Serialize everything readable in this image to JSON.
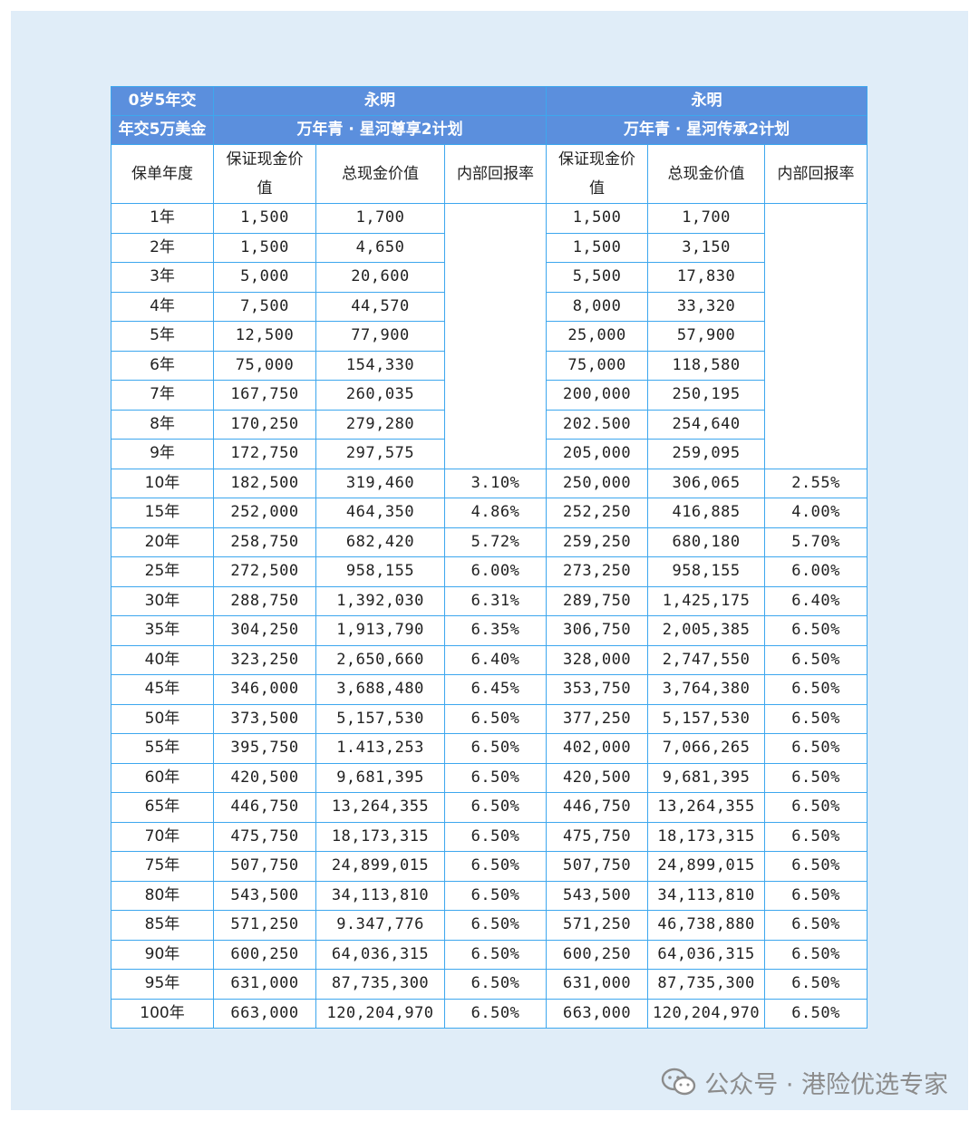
{
  "header": {
    "age_term": "0岁5年交",
    "premium": "年交5万美金",
    "company_a": "永明",
    "plan_a": "万年青 · 星河尊享2计划",
    "company_b": "永明",
    "plan_b": "万年青 · 星河传承2计划"
  },
  "columns": {
    "year": "保单年度",
    "guaranteed_line1": "保证现金价",
    "guaranteed_line2": "值",
    "total": "总现金价值",
    "irr": "内部回报率"
  },
  "rows": [
    [
      "1年",
      "1,500",
      "1,700",
      "",
      "1,500",
      "1,700",
      ""
    ],
    [
      "2年",
      "1,500",
      "4,650",
      "",
      "1,500",
      "3,150",
      ""
    ],
    [
      "3年",
      "5,000",
      "20,600",
      "",
      "5,500",
      "17,830",
      ""
    ],
    [
      "4年",
      "7,500",
      "44,570",
      "",
      "8,000",
      "33,320",
      ""
    ],
    [
      "5年",
      "12,500",
      "77,900",
      "",
      "25,000",
      "57,900",
      ""
    ],
    [
      "6年",
      "75,000",
      "154,330",
      "",
      "75,000",
      "118,580",
      ""
    ],
    [
      "7年",
      "167,750",
      "260,035",
      "",
      "200,000",
      "250,195",
      ""
    ],
    [
      "8年",
      "170,250",
      "279,280",
      "",
      "202.500",
      "254,640",
      ""
    ],
    [
      "9年",
      "172,750",
      "297,575",
      "",
      "205,000",
      "259,095",
      ""
    ],
    [
      "10年",
      "182,500",
      "319,460",
      "3.10%",
      "250,000",
      "306,065",
      "2.55%"
    ],
    [
      "15年",
      "252,000",
      "464,350",
      "4.86%",
      "252,250",
      "416,885",
      "4.00%"
    ],
    [
      "20年",
      "258,750",
      "682,420",
      "5.72%",
      "259,250",
      "680,180",
      "5.70%"
    ],
    [
      "25年",
      "272,500",
      "958,155",
      "6.00%",
      "273,250",
      "958,155",
      "6.00%"
    ],
    [
      "30年",
      "288,750",
      "1,392,030",
      "6.31%",
      "289,750",
      "1,425,175",
      "6.40%"
    ],
    [
      "35年",
      "304,250",
      "1,913,790",
      "6.35%",
      "306,750",
      "2,005,385",
      "6.50%"
    ],
    [
      "40年",
      "323,250",
      "2,650,660",
      "6.40%",
      "328,000",
      "2,747,550",
      "6.50%"
    ],
    [
      "45年",
      "346,000",
      "3,688,480",
      "6.45%",
      "353,750",
      "3,764,380",
      "6.50%"
    ],
    [
      "50年",
      "373,500",
      "5,157,530",
      "6.50%",
      "377,250",
      "5,157,530",
      "6.50%"
    ],
    [
      "55年",
      "395,750",
      "1.413,253",
      "6.50%",
      "402,000",
      "7,066,265",
      "6.50%"
    ],
    [
      "60年",
      "420,500",
      "9,681,395",
      "6.50%",
      "420,500",
      "9,681,395",
      "6.50%"
    ],
    [
      "65年",
      "446,750",
      "13,264,355",
      "6.50%",
      "446,750",
      "13,264,355",
      "6.50%"
    ],
    [
      "70年",
      "475,750",
      "18,173,315",
      "6.50%",
      "475,750",
      "18,173,315",
      "6.50%"
    ],
    [
      "75年",
      "507,750",
      "24,899,015",
      "6.50%",
      "507,750",
      "24,899,015",
      "6.50%"
    ],
    [
      "80年",
      "543,500",
      "34,113,810",
      "6.50%",
      "543,500",
      "34,113,810",
      "6.50%"
    ],
    [
      "85年",
      "571,250",
      "9.347,776",
      "6.50%",
      "571,250",
      "46,738,880",
      "6.50%"
    ],
    [
      "90年",
      "600,250",
      "64,036,315",
      "6.50%",
      "600,250",
      "64,036,315",
      "6.50%"
    ],
    [
      "95年",
      "631,000",
      "87,735,300",
      "6.50%",
      "631,000",
      "87,735,300",
      "6.50%"
    ],
    [
      "100年",
      "663,000",
      "120,204,970",
      "6.50%",
      "663,000",
      "120,204,970",
      "6.50%"
    ]
  ],
  "watermark": {
    "text": "公众号 · 港险优选专家",
    "icon": "wechat-icon"
  },
  "colors": {
    "header_bg": "#5b8fdd",
    "border": "#3da7ee",
    "panel_bg": "#e0edf8"
  }
}
